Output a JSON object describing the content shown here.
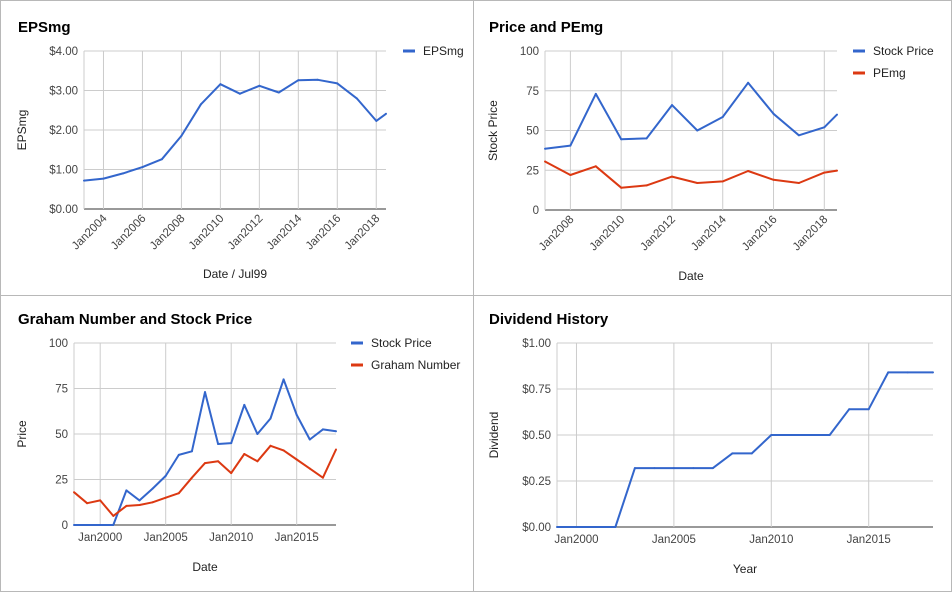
{
  "chart_data": [
    {
      "type": "line",
      "title": "EPSmg",
      "xlabel": "Date / Jul99",
      "ylabel": "EPSmg",
      "legend_position": "top-right",
      "x_range": [
        2003,
        2018.5
      ],
      "ylim": [
        0,
        4
      ],
      "y_ticks": [
        0,
        1,
        2,
        3,
        4
      ],
      "y_tick_labels": [
        "$0.00",
        "$1.00",
        "$2.00",
        "$3.00",
        "$4.00"
      ],
      "x_ticks": [
        2004,
        2006,
        2008,
        2010,
        2012,
        2014,
        2016,
        2018
      ],
      "x_tick_labels": [
        "Jan2004",
        "Jan2006",
        "Jan2008",
        "Jan2010",
        "Jan2012",
        "Jan2014",
        "Jan2016",
        "Jan2018"
      ],
      "x_tick_rotation": -45,
      "grid": true,
      "series": [
        {
          "name": "EPSmg",
          "color": "#3366cc",
          "x": [
            2003,
            2004,
            2005,
            2006,
            2007,
            2008,
            2009,
            2010,
            2011,
            2012,
            2013,
            2014,
            2015,
            2016,
            2017,
            2018,
            2018.5
          ],
          "values": [
            0.72,
            0.77,
            0.9,
            1.06,
            1.26,
            1.85,
            2.65,
            3.16,
            2.92,
            3.12,
            2.95,
            3.26,
            3.27,
            3.18,
            2.8,
            2.23,
            2.41
          ]
        }
      ]
    },
    {
      "type": "line",
      "title": "Price and PEmg",
      "xlabel": "Date",
      "ylabel": "Stock Price",
      "legend_position": "top-right",
      "x_range": [
        2007,
        2018.5
      ],
      "ylim": [
        0,
        100
      ],
      "y_ticks": [
        0,
        25,
        50,
        75,
        100
      ],
      "y_tick_labels": [
        "0",
        "25",
        "50",
        "75",
        "100"
      ],
      "x_ticks": [
        2008,
        2010,
        2012,
        2014,
        2016,
        2018
      ],
      "x_tick_labels": [
        "Jan2008",
        "Jan2010",
        "Jan2012",
        "Jan2014",
        "Jan2016",
        "Jan2018"
      ],
      "x_tick_rotation": -45,
      "grid": true,
      "series": [
        {
          "name": "Stock Price",
          "color": "#3366cc",
          "x": [
            2007,
            2008,
            2009,
            2010,
            2011,
            2012,
            2013,
            2014,
            2015,
            2016,
            2017,
            2018,
            2018.5
          ],
          "values": [
            38.5,
            40.5,
            73,
            44.5,
            45,
            66,
            50,
            58.5,
            80,
            60.5,
            47,
            52,
            60
          ]
        },
        {
          "name": "PEmg",
          "color": "#dc3912",
          "x": [
            2007,
            2008,
            2009,
            2010,
            2011,
            2012,
            2013,
            2014,
            2015,
            2016,
            2017,
            2018,
            2018.5
          ],
          "values": [
            30.5,
            22,
            27.5,
            14,
            15.5,
            21,
            17,
            18,
            24.5,
            19,
            17,
            23.5,
            24.8
          ]
        }
      ]
    },
    {
      "type": "line",
      "title": "Graham Number and Stock Price",
      "xlabel": "Date",
      "ylabel": "Price",
      "legend_position": "top-right",
      "x_range": [
        1998,
        2018
      ],
      "ylim": [
        0,
        100
      ],
      "y_ticks": [
        0,
        25,
        50,
        75,
        100
      ],
      "y_tick_labels": [
        "0",
        "25",
        "50",
        "75",
        "100"
      ],
      "x_ticks": [
        2000,
        2005,
        2010,
        2015
      ],
      "x_tick_labels": [
        "Jan2000",
        "Jan2005",
        "Jan2010",
        "Jan2015"
      ],
      "grid": true,
      "series": [
        {
          "name": "Stock Price",
          "color": "#3366cc",
          "x": [
            1998,
            1999,
            2000,
            2001,
            2002,
            2003,
            2004,
            2005,
            2006,
            2007,
            2008,
            2009,
            2010,
            2011,
            2012,
            2013,
            2014,
            2015,
            2016,
            2017,
            2018
          ],
          "values": [
            0,
            0,
            0,
            0,
            19,
            13.5,
            20,
            27,
            38.5,
            40.5,
            73,
            44.5,
            45,
            66,
            50,
            58.5,
            80,
            60.5,
            47,
            52.5,
            51.5
          ]
        },
        {
          "name": "Graham Number",
          "color": "#dc3912",
          "x": [
            1998,
            1999,
            2000,
            2001,
            2002,
            2003,
            2004,
            2005,
            2006,
            2007,
            2008,
            2009,
            2010,
            2011,
            2012,
            2013,
            2014,
            2015,
            2016,
            2017,
            2018
          ],
          "values": [
            18,
            12,
            13.5,
            5,
            10.5,
            11,
            12.5,
            15,
            17.5,
            26,
            34,
            35,
            28.5,
            39,
            35,
            43.5,
            41,
            36,
            31,
            26,
            41.5
          ]
        }
      ]
    },
    {
      "type": "line",
      "title": "Dividend History",
      "xlabel": "Year",
      "ylabel": "Dividend",
      "x_range": [
        1999,
        2018.3
      ],
      "ylim": [
        0,
        1
      ],
      "y_ticks": [
        0,
        0.25,
        0.5,
        0.75,
        1
      ],
      "y_tick_labels": [
        "$0.00",
        "$0.25",
        "$0.50",
        "$0.75",
        "$1.00"
      ],
      "x_ticks": [
        2000,
        2005,
        2010,
        2015
      ],
      "x_tick_labels": [
        "Jan2000",
        "Jan2005",
        "Jan2010",
        "Jan2015"
      ],
      "grid": true,
      "series": [
        {
          "name": "Dividend",
          "color": "#3366cc",
          "x": [
            1999,
            2000,
            2001,
            2002,
            2003,
            2004,
            2005,
            2006,
            2007,
            2008,
            2009,
            2010,
            2011,
            2012,
            2013,
            2014,
            2015,
            2016,
            2017,
            2018.3
          ],
          "values": [
            0,
            0,
            0,
            0,
            0.32,
            0.32,
            0.32,
            0.32,
            0.32,
            0.4,
            0.4,
            0.5,
            0.5,
            0.5,
            0.5,
            0.64,
            0.64,
            0.84,
            0.84,
            0.84
          ]
        }
      ]
    }
  ]
}
